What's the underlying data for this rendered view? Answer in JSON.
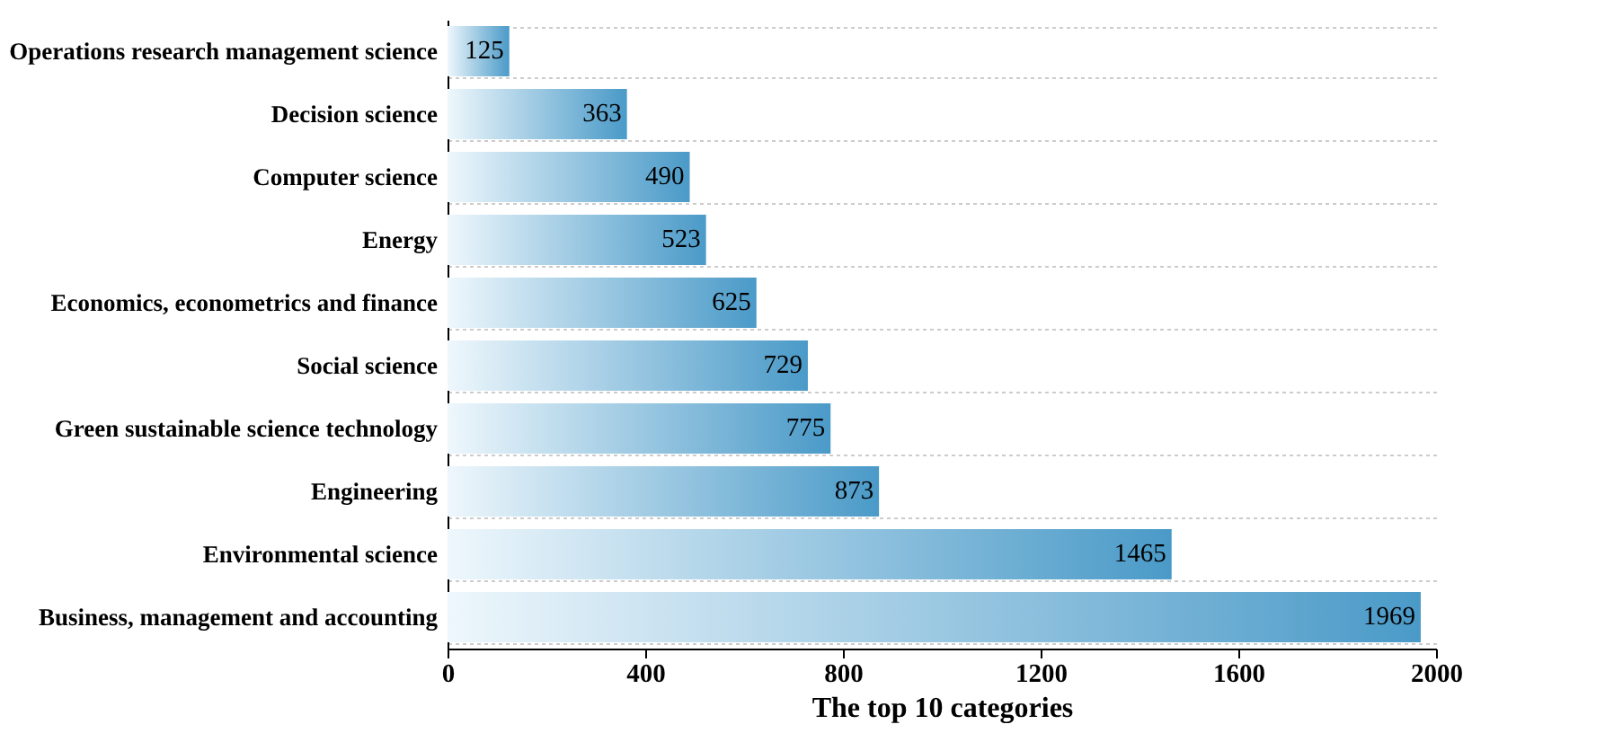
{
  "chart_data": {
    "type": "bar",
    "orientation": "horizontal",
    "xlabel": "The top 10 categories",
    "categories": [
      "Operations research management science",
      "Decision science",
      "Computer science",
      "Energy",
      "Economics, econometrics and finance",
      "Social science",
      "Green sustainable science technology",
      "Engineering",
      "Environmental science",
      "Business, management and accounting"
    ],
    "values": [
      125,
      363,
      490,
      523,
      625,
      729,
      775,
      873,
      1465,
      1969
    ],
    "color": "#4a9ac8",
    "xlim": [
      0,
      2000
    ],
    "xticks": [
      0,
      400,
      800,
      1200,
      1600,
      2000
    ],
    "grid": "y",
    "data_labels": true
  }
}
